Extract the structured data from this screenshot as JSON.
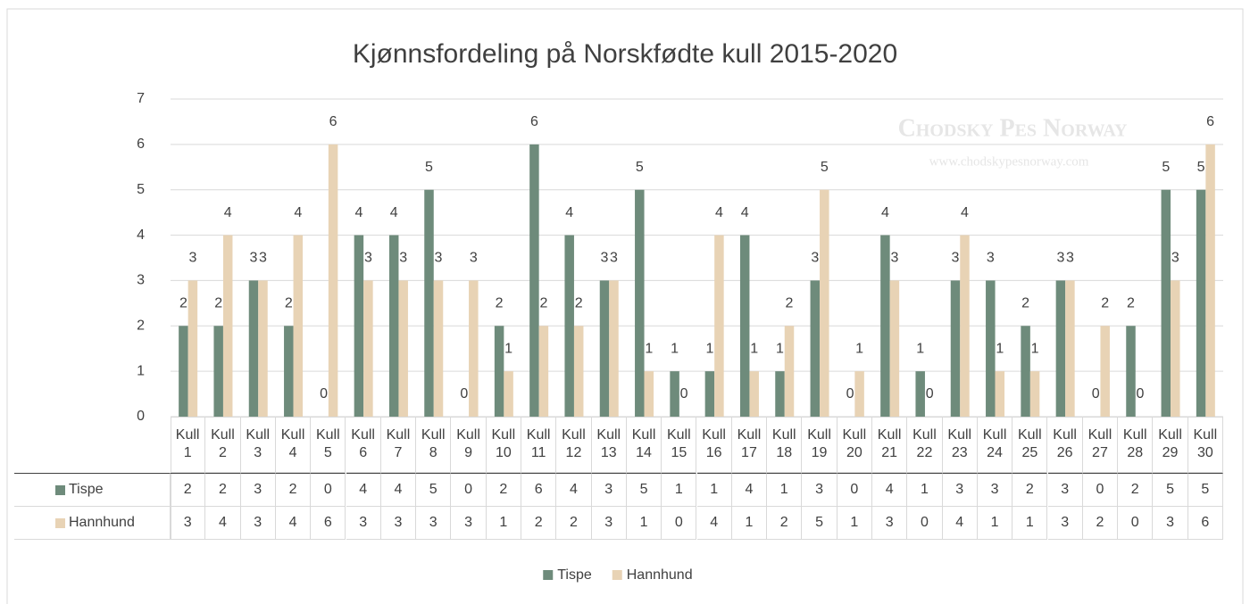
{
  "chart_data": {
    "type": "bar",
    "title": "Kjønnsfordeling på Norskfødte kull 2015-2020",
    "watermark": {
      "name": "Chodsky Pes Norway",
      "url": "www.chodskypesnorway.com"
    },
    "categories": [
      "Kull 1",
      "Kull 2",
      "Kull 3",
      "Kull 4",
      "Kull 5",
      "Kull 6",
      "Kull 7",
      "Kull 8",
      "Kull 9",
      "Kull 10",
      "Kull 11",
      "Kull 12",
      "Kull 13",
      "Kull 14",
      "Kull 15",
      "Kull 16",
      "Kull 17",
      "Kull 18",
      "Kull 19",
      "Kull 20",
      "Kull 21",
      "Kull 22",
      "Kull 23",
      "Kull 24",
      "Kull 25",
      "Kull 26",
      "Kull 27",
      "Kull 28",
      "Kull 29",
      "Kull 30"
    ],
    "series": [
      {
        "name": "Tispe",
        "color": "#6e8b7b",
        "values": [
          2,
          2,
          3,
          2,
          0,
          4,
          4,
          5,
          0,
          2,
          6,
          4,
          3,
          5,
          1,
          1,
          4,
          1,
          3,
          0,
          4,
          1,
          3,
          3,
          2,
          3,
          0,
          2,
          5,
          5
        ]
      },
      {
        "name": "Hannhund",
        "color": "#e8d3b5",
        "values": [
          3,
          4,
          3,
          4,
          6,
          3,
          3,
          3,
          3,
          1,
          2,
          2,
          3,
          1,
          0,
          4,
          1,
          2,
          5,
          1,
          3,
          0,
          4,
          1,
          1,
          3,
          2,
          0,
          3,
          6
        ]
      }
    ],
    "ylim": [
      0,
      7
    ],
    "yticks": [
      0,
      1,
      2,
      3,
      4,
      5,
      6,
      7
    ],
    "grid": true,
    "legend": "bottom",
    "data_table": true
  }
}
